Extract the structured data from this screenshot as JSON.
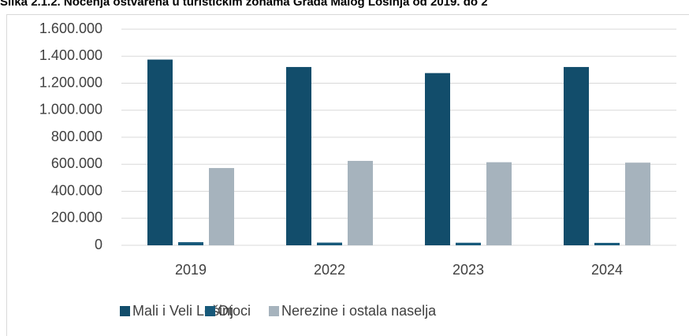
{
  "chart_data": {
    "type": "bar",
    "title": "Slika 2.1.2. Noćenja ostvarena u turističkim zonama Grada Malog Lošinja od 2019. do 2",
    "categories": [
      "2019",
      "2022",
      "2023",
      "2024"
    ],
    "series": [
      {
        "name": "Mali i Veli Lošinj",
        "color": "#124d6b",
        "values": [
          1375000,
          1320000,
          1275000,
          1320000
        ]
      },
      {
        "name": "Otoci",
        "color": "#17597a",
        "values": [
          23000,
          20000,
          19000,
          18000
        ]
      },
      {
        "name": "Nerezine i ostala naselja",
        "color": "#a6b3bd",
        "values": [
          572000,
          625000,
          615000,
          612000
        ]
      }
    ],
    "ylim": [
      0,
      1600000
    ],
    "yticks": [
      0,
      {
        "value": 200000,
        "label": "200.000"
      },
      {
        "value": 400000,
        "label": "400.000"
      },
      {
        "value": 600000,
        "label": "600.000"
      },
      {
        "value": 800000,
        "label": "800.000"
      },
      {
        "value": 1000000,
        "label": "1.000.000"
      },
      {
        "value": 1200000,
        "label": "1.200.000"
      },
      {
        "value": 1400000,
        "label": "1.400.000"
      },
      {
        "value": 1600000,
        "label": "1.600.000"
      }
    ],
    "grid": true,
    "legend": "bottom"
  }
}
